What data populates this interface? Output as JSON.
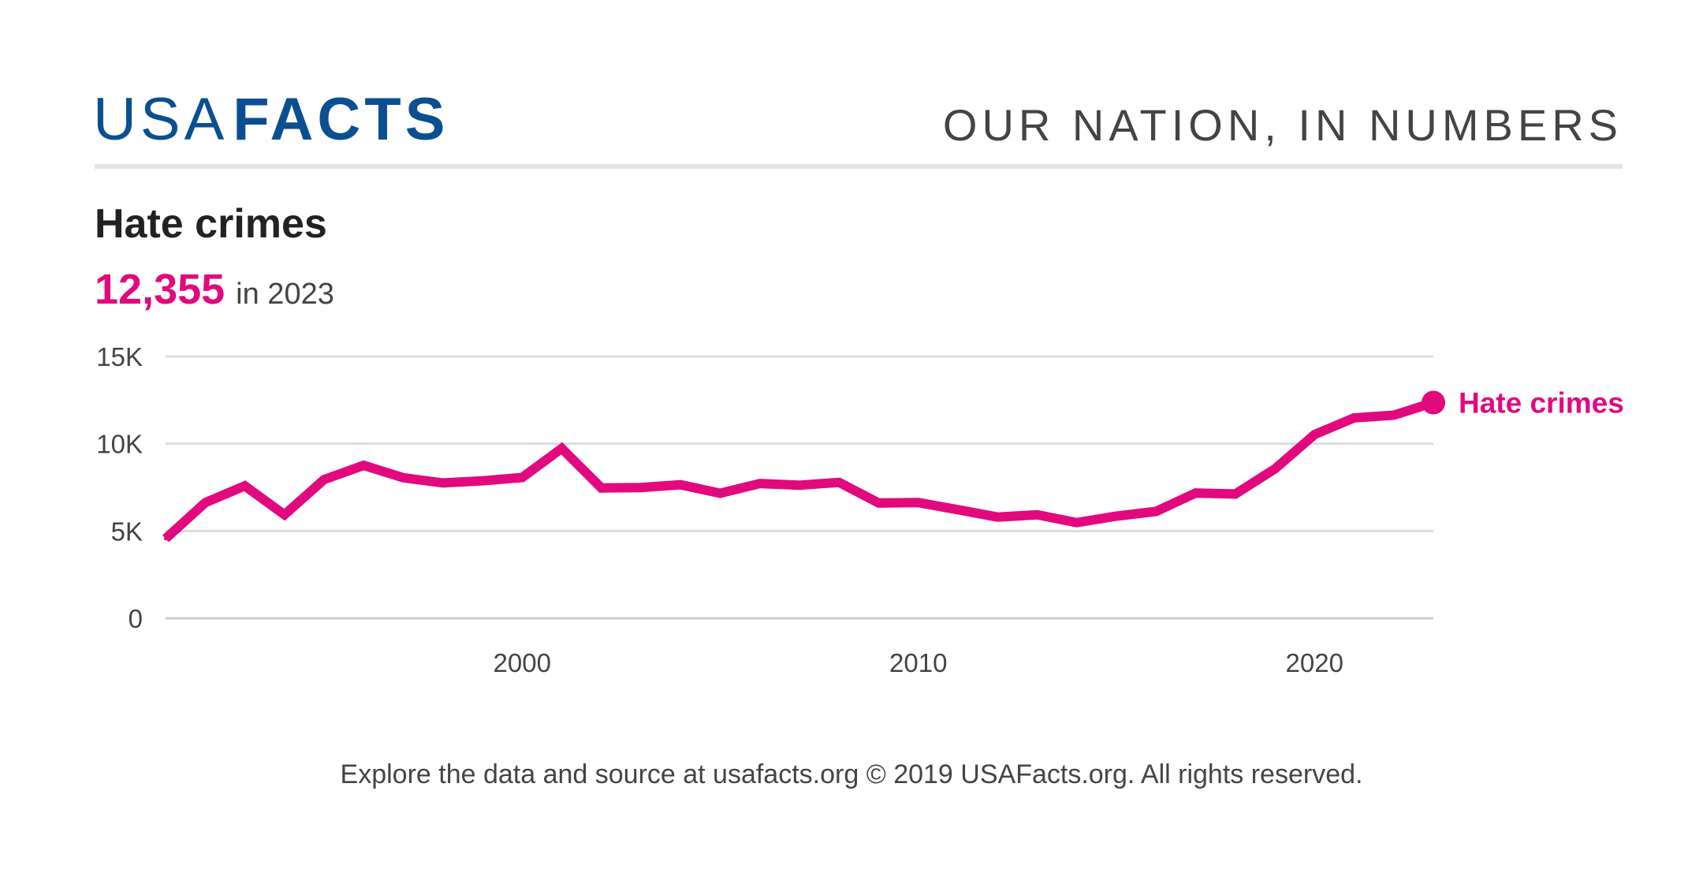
{
  "header": {
    "logo_light": "USA",
    "logo_bold": "FACTS",
    "tagline": "OUR NATION, IN NUMBERS"
  },
  "headline": {
    "title": "Hate crimes",
    "value": "12,355",
    "suffix": "in 2023"
  },
  "footer": {
    "text": "Explore the data and source at usafacts.org © 2019 USAFacts.org. All rights reserved."
  },
  "colors": {
    "brand_blue": "#0a4f92",
    "series_pink": "#e2097e",
    "grid": "#dcdcdc",
    "divider": "#e4e4e4",
    "text_dark": "#222222",
    "text_gray": "#444444"
  },
  "chart_data": {
    "type": "line",
    "title": "Hate crimes",
    "xlabel": "",
    "ylabel": "",
    "xlim": [
      1991,
      2023
    ],
    "ylim": [
      0,
      15000
    ],
    "grid": true,
    "legend": "end-of-line",
    "x_ticks": [
      {
        "value": 2000,
        "label": "2000"
      },
      {
        "value": 2010,
        "label": "2010"
      },
      {
        "value": 2020,
        "label": "2020"
      }
    ],
    "y_ticks": [
      {
        "value": 0,
        "label": "0"
      },
      {
        "value": 5000,
        "label": "5K"
      },
      {
        "value": 10000,
        "label": "10K"
      },
      {
        "value": 15000,
        "label": "15K"
      }
    ],
    "series": [
      {
        "name": "Hate crimes",
        "x": [
          1991,
          1992,
          1993,
          1994,
          1995,
          1996,
          1997,
          1998,
          1999,
          2000,
          2001,
          2002,
          2003,
          2004,
          2005,
          2006,
          2007,
          2008,
          2009,
          2010,
          2011,
          2012,
          2013,
          2014,
          2015,
          2016,
          2017,
          2018,
          2019,
          2020,
          2021,
          2022,
          2023
        ],
        "y": [
          4558,
          6623,
          7587,
          5932,
          7947,
          8759,
          8049,
          7755,
          7876,
          8063,
          9730,
          7462,
          7489,
          7649,
          7163,
          7722,
          7624,
          7783,
          6604,
          6628,
          6222,
          5796,
          5928,
          5479,
          5850,
          6121,
          7175,
          7120,
          8559,
          10528,
          11479,
          11634,
          12355
        ]
      }
    ]
  }
}
